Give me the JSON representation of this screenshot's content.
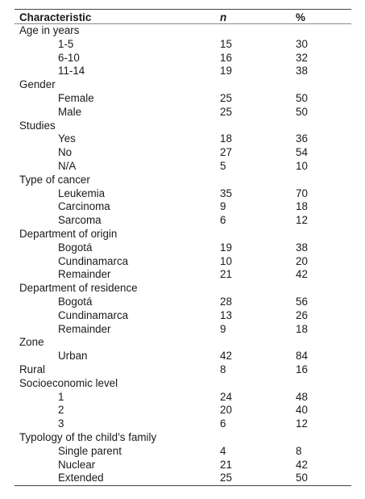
{
  "table": {
    "headers": {
      "characteristic": "Characteristic",
      "n": "n",
      "pct": "%"
    },
    "rows": [
      {
        "type": "group",
        "label": "Age in years"
      },
      {
        "type": "item",
        "label": "1-5",
        "n": "15",
        "pct": "30"
      },
      {
        "type": "item",
        "label": "6-10",
        "n": "16",
        "pct": "32"
      },
      {
        "type": "item",
        "label": "11-14",
        "n": "19",
        "pct": "38"
      },
      {
        "type": "group",
        "label": "Gender"
      },
      {
        "type": "item",
        "label": "Female",
        "n": "25",
        "pct": "50"
      },
      {
        "type": "item",
        "label": "Male",
        "n": "25",
        "pct": "50"
      },
      {
        "type": "group",
        "label": "Studies"
      },
      {
        "type": "item",
        "label": "Yes",
        "n": "18",
        "pct": "36"
      },
      {
        "type": "item",
        "label": "No",
        "n": "27",
        "pct": "54"
      },
      {
        "type": "item",
        "label": "N/A",
        "n": "5",
        "pct": "10"
      },
      {
        "type": "group",
        "label": "Type of cancer"
      },
      {
        "type": "item",
        "label": "Leukemia",
        "n": "35",
        "pct": "70"
      },
      {
        "type": "item",
        "label": "Carcinoma",
        "n": "9",
        "pct": "18"
      },
      {
        "type": "item",
        "label": "Sarcoma",
        "n": "6",
        "pct": "12"
      },
      {
        "type": "group",
        "label": "Department of origin"
      },
      {
        "type": "item",
        "label": "Bogotá",
        "n": "19",
        "pct": "38"
      },
      {
        "type": "item",
        "label": "Cundinamarca",
        "n": "10",
        "pct": "20"
      },
      {
        "type": "item",
        "label": "Remainder",
        "n": "21",
        "pct": "42"
      },
      {
        "type": "group",
        "label": "Department of residence"
      },
      {
        "type": "item",
        "label": "Bogotá",
        "n": "28",
        "pct": "56"
      },
      {
        "type": "item",
        "label": "Cundinamarca",
        "n": "13",
        "pct": "26"
      },
      {
        "type": "item",
        "label": "Remainder",
        "n": "9",
        "pct": "18"
      },
      {
        "type": "group",
        "label": "Zone"
      },
      {
        "type": "item",
        "label": "Urban",
        "n": "42",
        "pct": "84"
      },
      {
        "type": "flat",
        "label": "Rural",
        "n": "8",
        "pct": "16"
      },
      {
        "type": "group",
        "label": "Socioeconomic level"
      },
      {
        "type": "item",
        "label": "1",
        "n": "24",
        "pct": "48"
      },
      {
        "type": "item",
        "label": "2",
        "n": "20",
        "pct": "40"
      },
      {
        "type": "item",
        "label": "3",
        "n": "6",
        "pct": "12"
      },
      {
        "type": "group",
        "label": "Typology of the child’s family"
      },
      {
        "type": "item",
        "label": "Single parent",
        "n": "4",
        "pct": "8"
      },
      {
        "type": "item",
        "label": "Nuclear",
        "n": "21",
        "pct": "42"
      },
      {
        "type": "item",
        "label": "Extended",
        "n": "25",
        "pct": "50"
      }
    ]
  }
}
